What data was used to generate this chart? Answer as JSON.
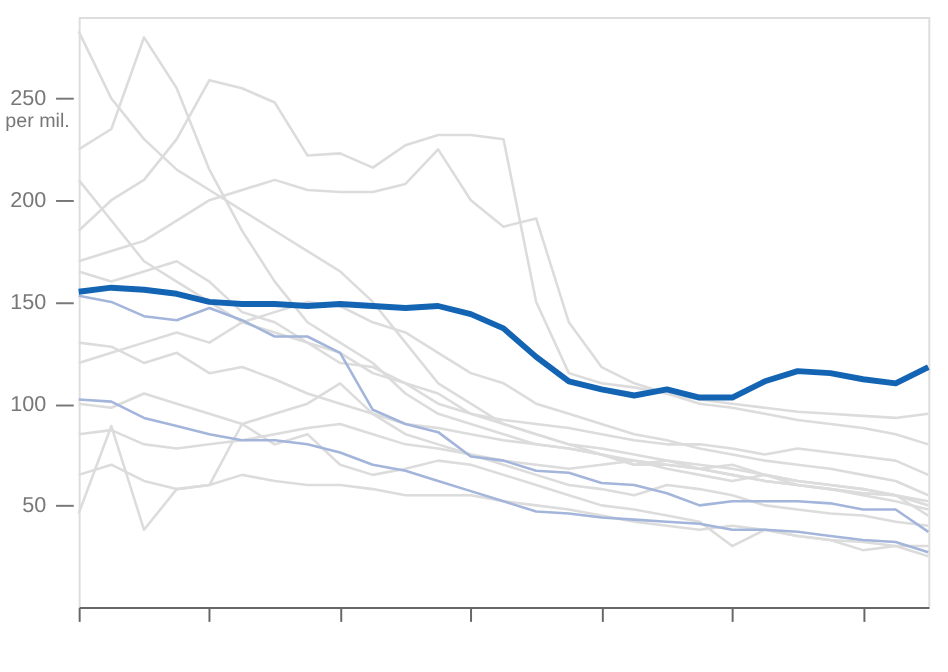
{
  "chart_data": {
    "type": "line",
    "ylabel": "per mil.",
    "categories": [
      null,
      null,
      null,
      null,
      null,
      null,
      null,
      null,
      null,
      null,
      null,
      null,
      null,
      null,
      null,
      null,
      null,
      null,
      null,
      null,
      null,
      null,
      null,
      null,
      null,
      null,
      null
    ],
    "ylim": [
      0,
      290
    ],
    "yticks": [
      50,
      100,
      150,
      200,
      250
    ],
    "tick_labels": "y",
    "grid": false,
    "marker": "none",
    "line_style": "solid",
    "series": [
      {
        "color": "#dcdcdc",
        "values": [
          283,
          250,
          230,
          215,
          205,
          195,
          185,
          175,
          165,
          150,
          130,
          110,
          100,
          90,
          85,
          80,
          78,
          75,
          72,
          70,
          68,
          65,
          62,
          60,
          58,
          55,
          50
        ]
      },
      {
        "color": "#dcdcdc",
        "values": [
          225,
          235,
          280,
          255,
          215,
          185,
          160,
          140,
          130,
          120,
          105,
          95,
          90,
          85,
          80,
          78,
          75,
          70,
          70,
          68,
          65,
          62,
          60,
          58,
          55,
          52,
          48
        ]
      },
      {
        "color": "#dcdcdc",
        "values": [
          185,
          200,
          210,
          230,
          259,
          255,
          248,
          222,
          223,
          216,
          227,
          232,
          232,
          230,
          150,
          115,
          110,
          108,
          105,
          102,
          100,
          98,
          96,
          95,
          94,
          93,
          95
        ]
      },
      {
        "color": "#dcdcdc",
        "values": [
          170,
          175,
          180,
          190,
          200,
          205,
          210,
          205,
          204,
          204,
          208,
          225,
          200,
          187,
          191,
          140,
          118,
          110,
          105,
          100,
          98,
          95,
          92,
          90,
          88,
          85,
          80
        ]
      },
      {
        "color": "#dcdcdc",
        "values": [
          130,
          128,
          120,
          125,
          115,
          118,
          112,
          105,
          100,
          95,
          90,
          88,
          85,
          82,
          80,
          78,
          75,
          70,
          72,
          68,
          70,
          65,
          62,
          60,
          58,
          55,
          52
        ]
      },
      {
        "color": "#dcdcdc",
        "values": [
          65,
          70,
          62,
          58,
          60,
          65,
          62,
          60,
          60,
          58,
          55,
          55,
          55,
          52,
          50,
          48,
          45,
          42,
          40,
          38,
          40,
          38,
          35,
          33,
          32,
          30,
          30
        ]
      },
      {
        "color": "#dcdcdc",
        "values": [
          46,
          89,
          38,
          58,
          60,
          90,
          80,
          85,
          70,
          65,
          68,
          72,
          70,
          65,
          60,
          55,
          50,
          48,
          45,
          42,
          30,
          38,
          35,
          33,
          28,
          30,
          25
        ]
      },
      {
        "color": "#dcdcdc",
        "values": [
          120,
          125,
          130,
          135,
          130,
          140,
          145,
          150,
          148,
          140,
          135,
          125,
          115,
          110,
          100,
          95,
          90,
          85,
          82,
          78,
          75,
          72,
          70,
          68,
          65,
          62,
          55
        ]
      },
      {
        "color": "#dcdcdc",
        "values": [
          85,
          87,
          80,
          78,
          80,
          82,
          85,
          88,
          90,
          85,
          80,
          78,
          75,
          72,
          70,
          68,
          70,
          72,
          68,
          65,
          62,
          65,
          60,
          58,
          56,
          55,
          50
        ]
      },
      {
        "color": "#dcdcdc",
        "values": [
          165,
          160,
          165,
          170,
          160,
          145,
          140,
          130,
          125,
          115,
          110,
          105,
          95,
          92,
          90,
          88,
          85,
          82,
          80,
          80,
          78,
          75,
          78,
          76,
          74,
          72,
          65
        ]
      },
      {
        "color": "#dcdcdc",
        "values": [
          210,
          190,
          170,
          160,
          150,
          140,
          135,
          130,
          120,
          118,
          110,
          100,
          95,
          90,
          85,
          80,
          75,
          72,
          70,
          68,
          65,
          62,
          60,
          58,
          56,
          55,
          45
        ]
      },
      {
        "color": "#dcdcdc",
        "values": [
          100,
          98,
          105,
          100,
          95,
          90,
          95,
          100,
          110,
          95,
          85,
          80,
          75,
          70,
          65,
          60,
          58,
          55,
          60,
          58,
          55,
          50,
          48,
          46,
          45,
          42,
          40
        ]
      },
      {
        "color": "#a3b5da",
        "values": [
          153,
          150,
          143,
          141,
          147,
          141,
          133,
          133,
          125,
          97,
          90,
          86,
          74,
          72,
          67,
          66,
          61,
          60,
          56,
          50,
          52,
          52,
          52,
          51,
          48,
          48,
          37
        ]
      },
      {
        "color": "#a3b5da",
        "values": [
          102,
          101,
          93,
          89,
          85,
          82,
          82,
          80,
          76,
          70,
          67,
          62,
          57,
          52,
          47,
          46,
          44,
          43,
          42,
          41,
          38,
          38,
          37,
          35,
          33,
          32,
          27
        ]
      },
      {
        "color": "#1464b4",
        "values": [
          155,
          157,
          156,
          154,
          150,
          149,
          149,
          148,
          149,
          148,
          147,
          148,
          144,
          137,
          123,
          111,
          107,
          104,
          107,
          103,
          103,
          111,
          116,
          115,
          112,
          110,
          118
        ]
      }
    ]
  }
}
